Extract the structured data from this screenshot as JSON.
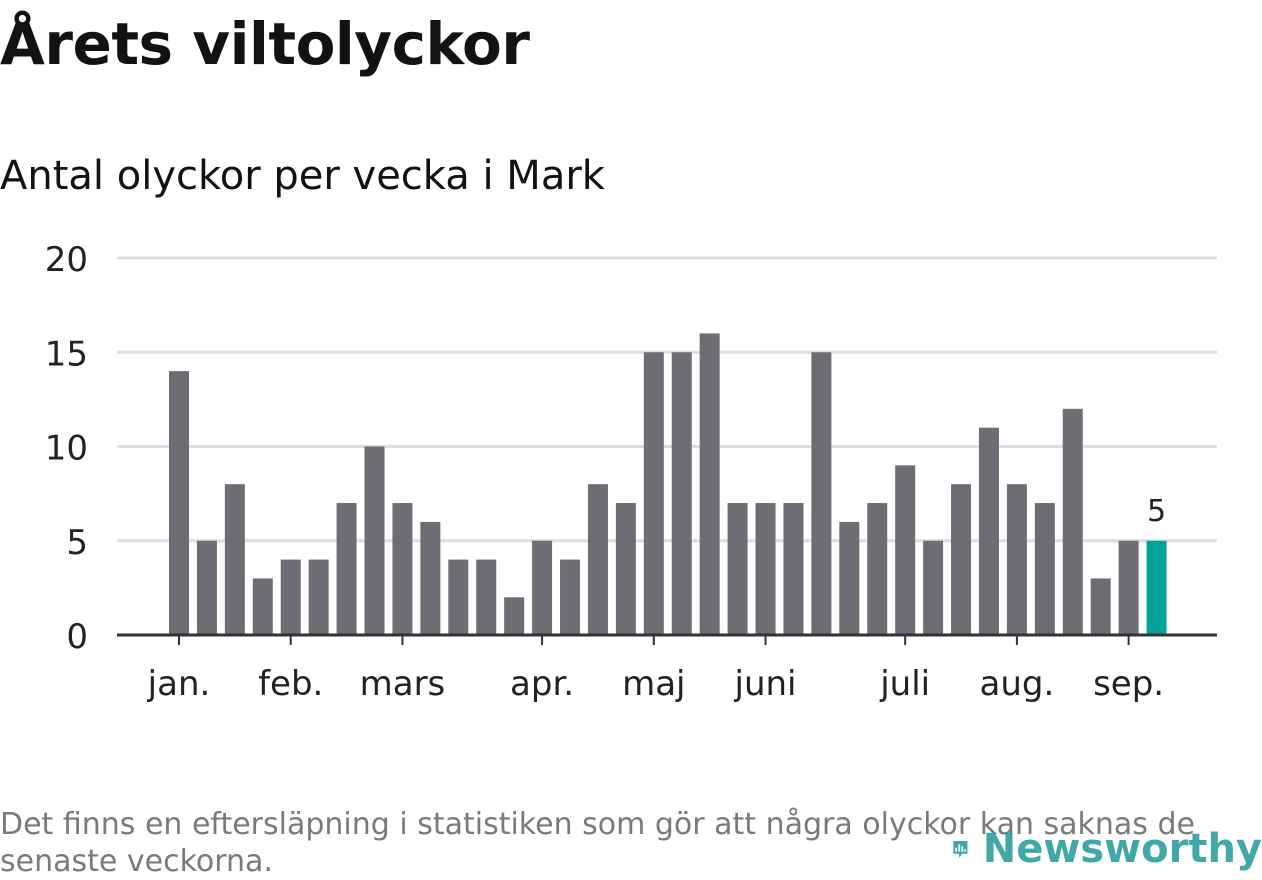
{
  "header": {
    "title": "Årets viltolyckor",
    "subtitle": "Antal olyckor per vecka i Mark"
  },
  "footer": {
    "note": "Det finns en eftersläpning i statistiken som gör att några olyckor kan saknas de senaste veckorna.",
    "brand": "Newsworthy",
    "brand_icon": "bar-chart-icon"
  },
  "colors": {
    "bar": "#6e6d73",
    "highlight": "#00a39a",
    "grid": "#dddddd",
    "axis": "#333333",
    "brand": "#1f9999"
  },
  "chart_data": {
    "type": "bar",
    "title": "Antal olyckor per vecka i Mark",
    "xlabel": "",
    "ylabel": "",
    "ylim": [
      0,
      20
    ],
    "yticks": [
      0,
      5,
      10,
      15,
      20
    ],
    "grid": true,
    "values": [
      14,
      5,
      8,
      3,
      4,
      4,
      7,
      10,
      7,
      6,
      4,
      4,
      2,
      5,
      4,
      8,
      7,
      15,
      15,
      16,
      7,
      7,
      7,
      15,
      6,
      7,
      9,
      5,
      8,
      11,
      8,
      7,
      12,
      3,
      5,
      5
    ],
    "highlight_index": 35,
    "highlight_label": "5",
    "month_labels": [
      {
        "label": "jan.",
        "at_bar": 0
      },
      {
        "label": "feb.",
        "at_bar": 4
      },
      {
        "label": "mars",
        "at_bar": 8
      },
      {
        "label": "apr.",
        "at_bar": 13
      },
      {
        "label": "maj",
        "at_bar": 17
      },
      {
        "label": "juni",
        "at_bar": 21
      },
      {
        "label": "juli",
        "at_bar": 26
      },
      {
        "label": "aug.",
        "at_bar": 30
      },
      {
        "label": "sep.",
        "at_bar": 34
      }
    ]
  }
}
